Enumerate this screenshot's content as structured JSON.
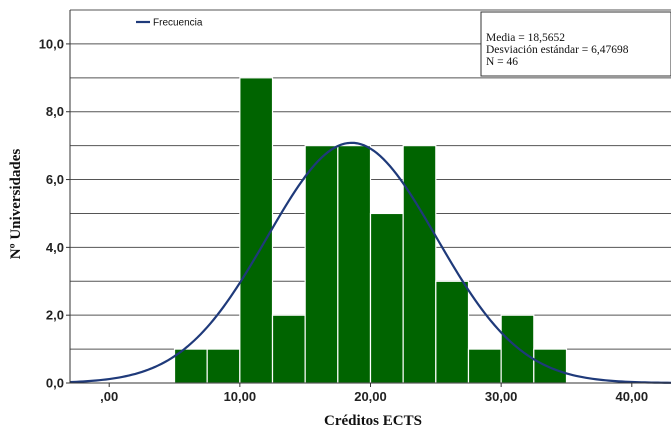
{
  "chart_data": {
    "type": "bar",
    "xlabel": "Créditos ECTS",
    "ylabel": "Nº Universidades",
    "xlim": [
      -3,
      43
    ],
    "ylim": [
      0,
      11
    ],
    "x_ticks": [
      ",00",
      "10,00",
      "20,00",
      "30,00",
      "40,00"
    ],
    "x_tick_values": [
      0,
      10,
      20,
      30,
      40
    ],
    "y_ticks": [
      "0,0",
      "2,0",
      "4,0",
      "6,0",
      "8,0",
      "10,0"
    ],
    "y_tick_values": [
      0,
      2,
      4,
      6,
      8,
      10
    ],
    "bin_width": 2.5,
    "bins": [
      {
        "start": 5.0,
        "count": 1
      },
      {
        "start": 7.5,
        "count": 1
      },
      {
        "start": 10.0,
        "count": 9
      },
      {
        "start": 12.5,
        "count": 2
      },
      {
        "start": 15.0,
        "count": 7
      },
      {
        "start": 17.5,
        "count": 7
      },
      {
        "start": 20.0,
        "count": 5
      },
      {
        "start": 22.5,
        "count": 7
      },
      {
        "start": 25.0,
        "count": 3
      },
      {
        "start": 27.5,
        "count": 1
      },
      {
        "start": 30.0,
        "count": 2
      },
      {
        "start": 32.5,
        "count": 1
      }
    ],
    "normal_curve": {
      "name": "Frecuencia",
      "mean": 18.5652,
      "sd": 6.47698,
      "n": 46
    },
    "stats": [
      "Media = 18,5652",
      "Desviación estándar = 6,47698",
      "N = 46"
    ],
    "legend_placement": "top-left",
    "grid": true,
    "colors": {
      "bar": "#006400",
      "bar_edge": "#ffffff",
      "curve": "#1f3a7a",
      "grid": "#555555"
    }
  }
}
